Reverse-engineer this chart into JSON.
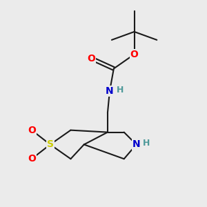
{
  "background_color": "#ebebeb",
  "bond_color": "#1a1a1a",
  "atom_colors": {
    "O": "#ff0000",
    "N": "#0000cc",
    "S": "#cccc00",
    "H_teal": "#4d9999",
    "C": "#1a1a1a"
  },
  "font_size_atoms": 10,
  "figsize": [
    3.0,
    3.0
  ],
  "dpi": 100,
  "lw": 1.5
}
